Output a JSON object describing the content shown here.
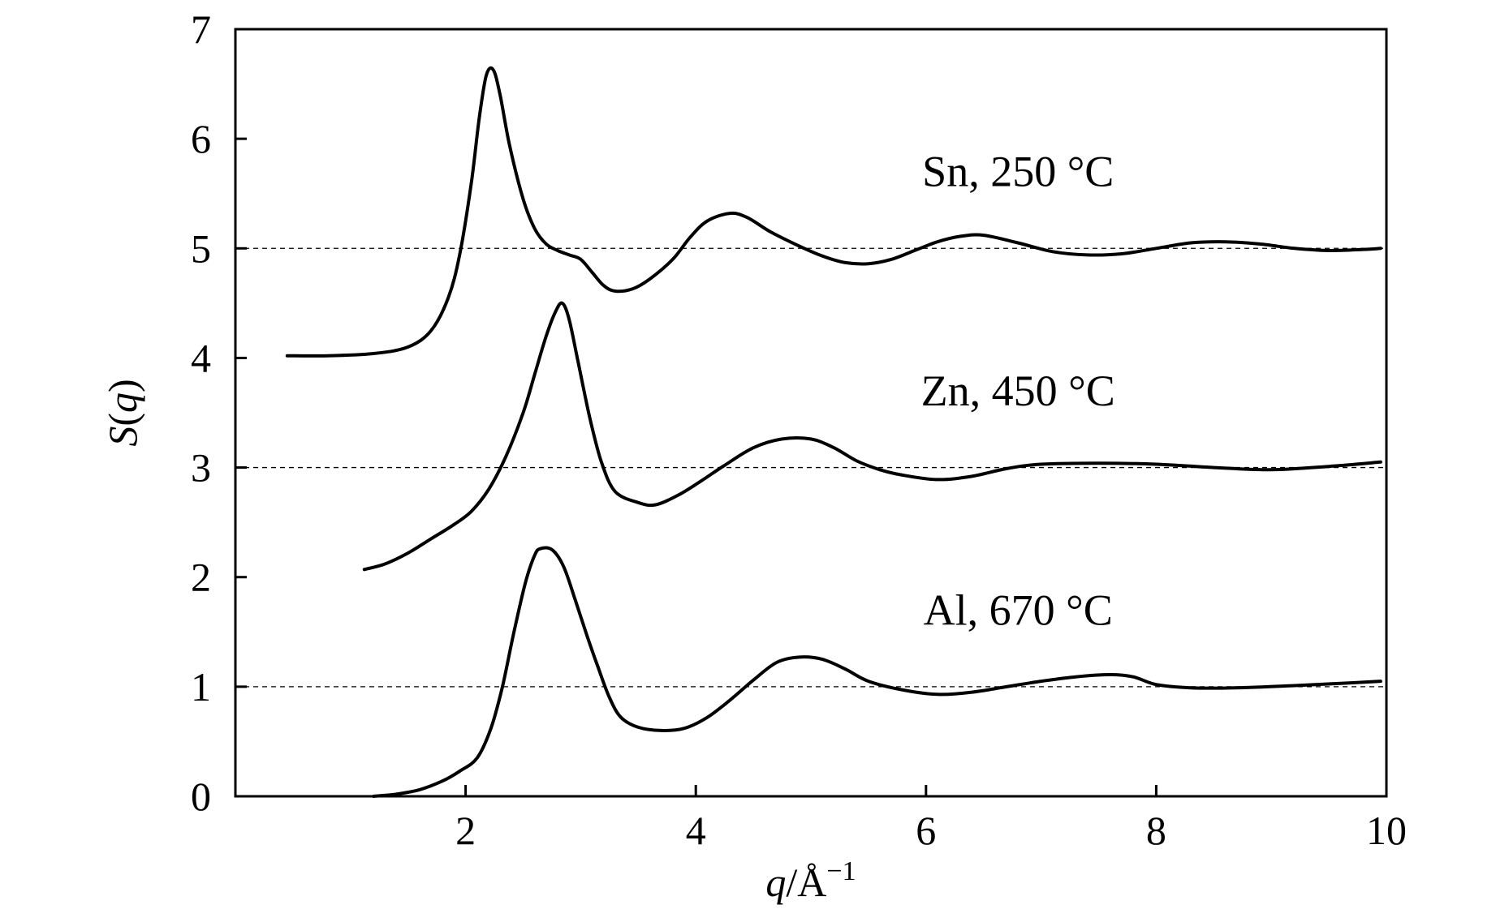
{
  "chart_data": {
    "type": "line",
    "xlabel": {
      "var": "q",
      "sep": "/Å",
      "sup": "−1"
    },
    "ylabel": {
      "var": "S",
      "arg": "q"
    },
    "xlim": [
      0,
      10
    ],
    "ylim": [
      0,
      7
    ],
    "x_ticks": [
      2,
      4,
      6,
      8,
      10
    ],
    "x_tick_labels": [
      "2",
      "4",
      "6",
      "8",
      "10"
    ],
    "y_ticks": [
      0,
      1,
      2,
      3,
      4,
      5,
      6,
      7
    ],
    "y_tick_labels": [
      "0",
      "1",
      "2",
      "3",
      "4",
      "5",
      "6",
      "7"
    ],
    "reference_lines": [
      1,
      3,
      5
    ],
    "grid": false,
    "series": [
      {
        "name": "Sn, 250 °C",
        "label_anchor": [
          6.8,
          5.7
        ],
        "points": [
          [
            0.45,
            4.02
          ],
          [
            0.8,
            4.02
          ],
          [
            1.2,
            4.04
          ],
          [
            1.5,
            4.1
          ],
          [
            1.7,
            4.25
          ],
          [
            1.85,
            4.55
          ],
          [
            1.95,
            4.95
          ],
          [
            2.05,
            5.6
          ],
          [
            2.12,
            6.2
          ],
          [
            2.18,
            6.58
          ],
          [
            2.24,
            6.63
          ],
          [
            2.3,
            6.4
          ],
          [
            2.38,
            5.95
          ],
          [
            2.5,
            5.45
          ],
          [
            2.6,
            5.18
          ],
          [
            2.7,
            5.04
          ],
          [
            2.8,
            4.98
          ],
          [
            2.9,
            4.94
          ],
          [
            3.0,
            4.9
          ],
          [
            3.1,
            4.78
          ],
          [
            3.2,
            4.66
          ],
          [
            3.3,
            4.61
          ],
          [
            3.45,
            4.63
          ],
          [
            3.6,
            4.72
          ],
          [
            3.8,
            4.9
          ],
          [
            3.95,
            5.1
          ],
          [
            4.1,
            5.25
          ],
          [
            4.3,
            5.32
          ],
          [
            4.45,
            5.28
          ],
          [
            4.65,
            5.15
          ],
          [
            4.9,
            5.02
          ],
          [
            5.1,
            4.93
          ],
          [
            5.3,
            4.87
          ],
          [
            5.5,
            4.86
          ],
          [
            5.7,
            4.9
          ],
          [
            5.9,
            4.98
          ],
          [
            6.1,
            5.06
          ],
          [
            6.3,
            5.11
          ],
          [
            6.5,
            5.12
          ],
          [
            6.8,
            5.05
          ],
          [
            7.1,
            4.97
          ],
          [
            7.4,
            4.94
          ],
          [
            7.7,
            4.95
          ],
          [
            8.0,
            5.0
          ],
          [
            8.3,
            5.05
          ],
          [
            8.6,
            5.06
          ],
          [
            8.9,
            5.04
          ],
          [
            9.2,
            5.0
          ],
          [
            9.5,
            4.98
          ],
          [
            9.8,
            4.99
          ],
          [
            9.95,
            5.0
          ]
        ]
      },
      {
        "name": "Zn, 450 °C",
        "label_anchor": [
          6.8,
          3.7
        ],
        "points": [
          [
            1.12,
            2.07
          ],
          [
            1.3,
            2.12
          ],
          [
            1.5,
            2.22
          ],
          [
            1.7,
            2.35
          ],
          [
            1.9,
            2.48
          ],
          [
            2.05,
            2.6
          ],
          [
            2.2,
            2.8
          ],
          [
            2.35,
            3.1
          ],
          [
            2.5,
            3.5
          ],
          [
            2.6,
            3.85
          ],
          [
            2.7,
            4.2
          ],
          [
            2.78,
            4.42
          ],
          [
            2.84,
            4.5
          ],
          [
            2.9,
            4.35
          ],
          [
            2.98,
            3.95
          ],
          [
            3.08,
            3.45
          ],
          [
            3.18,
            3.05
          ],
          [
            3.3,
            2.78
          ],
          [
            3.5,
            2.68
          ],
          [
            3.65,
            2.66
          ],
          [
            3.85,
            2.75
          ],
          [
            4.05,
            2.88
          ],
          [
            4.25,
            3.02
          ],
          [
            4.5,
            3.18
          ],
          [
            4.75,
            3.26
          ],
          [
            5.0,
            3.26
          ],
          [
            5.2,
            3.18
          ],
          [
            5.4,
            3.06
          ],
          [
            5.6,
            2.98
          ],
          [
            5.8,
            2.93
          ],
          [
            6.1,
            2.89
          ],
          [
            6.4,
            2.92
          ],
          [
            6.7,
            2.99
          ],
          [
            7.0,
            3.03
          ],
          [
            7.5,
            3.04
          ],
          [
            8.0,
            3.03
          ],
          [
            8.5,
            3.0
          ],
          [
            9.0,
            2.98
          ],
          [
            9.5,
            3.01
          ],
          [
            9.95,
            3.05
          ]
        ]
      },
      {
        "name": "Al, 670 °C",
        "label_anchor": [
          6.8,
          1.7
        ],
        "points": [
          [
            1.2,
            0.0
          ],
          [
            1.4,
            0.02
          ],
          [
            1.6,
            0.06
          ],
          [
            1.8,
            0.14
          ],
          [
            1.95,
            0.23
          ],
          [
            2.1,
            0.35
          ],
          [
            2.22,
            0.62
          ],
          [
            2.32,
            1.0
          ],
          [
            2.42,
            1.5
          ],
          [
            2.52,
            1.95
          ],
          [
            2.6,
            2.2
          ],
          [
            2.65,
            2.26
          ],
          [
            2.75,
            2.25
          ],
          [
            2.85,
            2.1
          ],
          [
            2.95,
            1.8
          ],
          [
            3.05,
            1.48
          ],
          [
            3.15,
            1.18
          ],
          [
            3.25,
            0.9
          ],
          [
            3.35,
            0.72
          ],
          [
            3.5,
            0.63
          ],
          [
            3.7,
            0.6
          ],
          [
            3.9,
            0.62
          ],
          [
            4.1,
            0.72
          ],
          [
            4.3,
            0.88
          ],
          [
            4.5,
            1.06
          ],
          [
            4.7,
            1.22
          ],
          [
            4.9,
            1.27
          ],
          [
            5.1,
            1.25
          ],
          [
            5.3,
            1.16
          ],
          [
            5.5,
            1.05
          ],
          [
            5.8,
            0.97
          ],
          [
            6.1,
            0.93
          ],
          [
            6.4,
            0.95
          ],
          [
            6.7,
            1.0
          ],
          [
            7.0,
            1.05
          ],
          [
            7.3,
            1.09
          ],
          [
            7.6,
            1.11
          ],
          [
            7.8,
            1.09
          ],
          [
            8.0,
            1.02
          ],
          [
            8.3,
            0.99
          ],
          [
            8.7,
            0.99
          ],
          [
            9.2,
            1.01
          ],
          [
            9.6,
            1.03
          ],
          [
            9.95,
            1.05
          ]
        ]
      }
    ]
  }
}
